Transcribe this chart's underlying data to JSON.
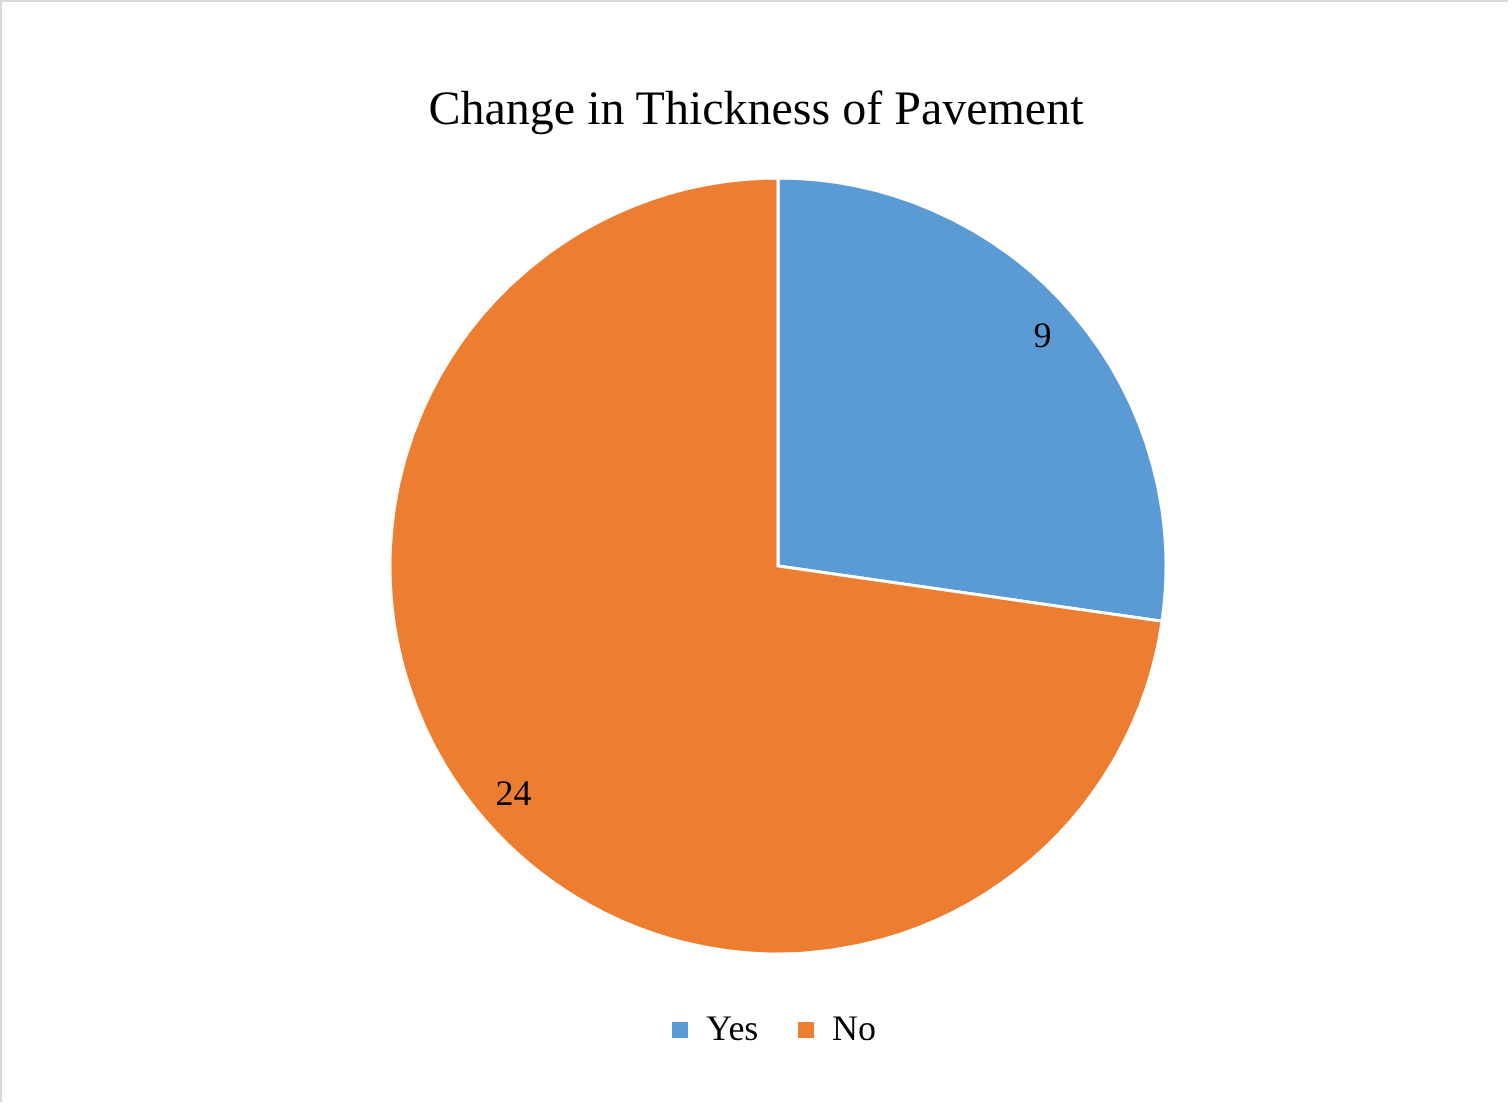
{
  "chart_data": {
    "type": "pie",
    "title": "Change in Thickness of Pavement",
    "categories": [
      "Yes",
      "No"
    ],
    "values": [
      9,
      24
    ],
    "colors": [
      "#5b9bd5",
      "#ed7d31"
    ],
    "data_labels": true,
    "legend": "bottom"
  }
}
